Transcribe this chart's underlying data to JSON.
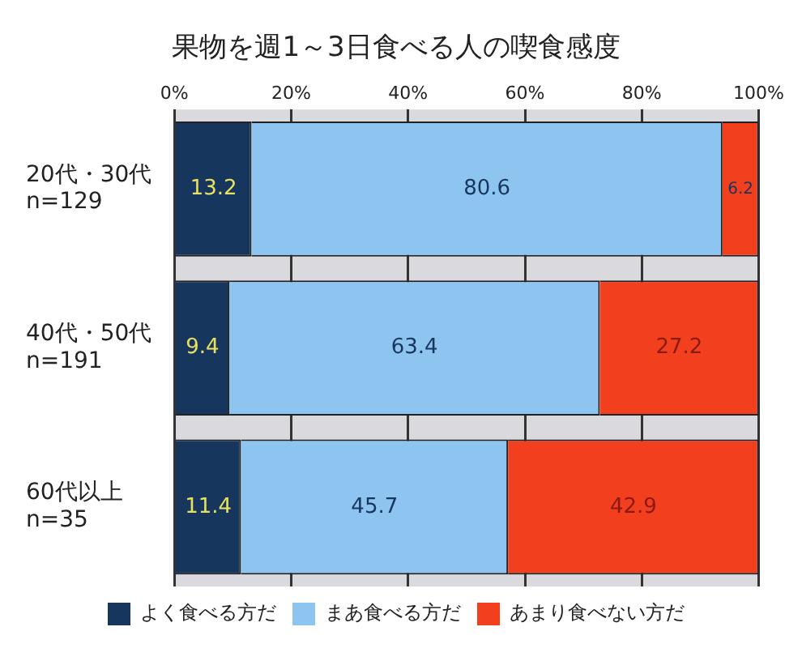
{
  "chart_data": {
    "type": "bar",
    "orientation": "horizontal",
    "stacked": true,
    "title": "果物を週1～3日食べる人の喫食感度",
    "categories": [
      "20代・30代\nn=129",
      "40代・50代\nn=191",
      "60代以上\nn=35"
    ],
    "series": [
      {
        "name": "よく食べる方だ",
        "color": "#17365d",
        "values": [
          13.2,
          9.4,
          11.4
        ]
      },
      {
        "name": "まあ食べる方だ",
        "color": "#8ec5f0",
        "values": [
          80.6,
          63.4,
          45.7
        ]
      },
      {
        "name": "あまり食べない方だ",
        "color": "#f2401f",
        "values": [
          6.2,
          27.2,
          42.9
        ]
      }
    ],
    "xlim": [
      0,
      100
    ],
    "xticks": [
      {
        "value": 0,
        "label": "0%"
      },
      {
        "value": 20,
        "label": "20%"
      },
      {
        "value": 40,
        "label": "40%"
      },
      {
        "value": 60,
        "label": "60%"
      },
      {
        "value": 80,
        "label": "80%"
      },
      {
        "value": 100,
        "label": "100%"
      }
    ],
    "grid": "x",
    "legend": "bottom",
    "data_labels": true
  }
}
